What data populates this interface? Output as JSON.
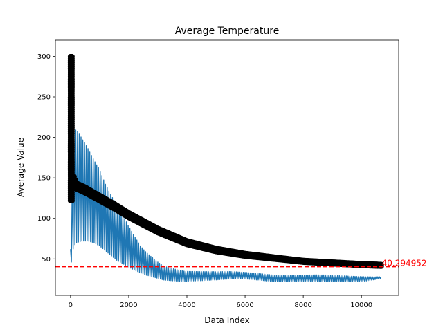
{
  "chart_data": {
    "type": "line",
    "title": "Average Temperature",
    "xlabel": "Data Index",
    "ylabel": "Average Value",
    "xlim": [
      -520,
      11280
    ],
    "ylim": [
      5,
      320
    ],
    "xticks": [
      0,
      2000,
      4000,
      6000,
      8000,
      10000
    ],
    "yticks": [
      50,
      100,
      150,
      200,
      250,
      300
    ],
    "grid": false,
    "series": [
      {
        "style": "line",
        "color": "#1f77b4",
        "upper": [
          [
            0,
            62
          ],
          [
            100,
            205
          ],
          [
            200,
            210
          ],
          [
            400,
            198
          ],
          [
            600,
            186
          ],
          [
            800,
            172
          ],
          [
            1000,
            160
          ],
          [
            1200,
            142
          ],
          [
            1400,
            128
          ],
          [
            1600,
            116
          ],
          [
            1800,
            104
          ],
          [
            2000,
            90
          ],
          [
            2200,
            78
          ],
          [
            2400,
            66
          ],
          [
            2600,
            58
          ],
          [
            2800,
            52
          ],
          [
            3000,
            46
          ],
          [
            3200,
            41
          ],
          [
            3500,
            38
          ],
          [
            4000,
            34
          ],
          [
            4500,
            33
          ],
          [
            5000,
            33
          ],
          [
            5500,
            34
          ],
          [
            6000,
            34
          ],
          [
            6500,
            33
          ],
          [
            7000,
            31
          ],
          [
            8000,
            29
          ],
          [
            9000,
            29
          ],
          [
            10000,
            29
          ],
          [
            10700,
            29
          ]
        ],
        "lower": [
          [
            0,
            38
          ],
          [
            100,
            65
          ],
          [
            200,
            70
          ],
          [
            400,
            72
          ],
          [
            600,
            72
          ],
          [
            800,
            70
          ],
          [
            1000,
            66
          ],
          [
            1200,
            60
          ],
          [
            1400,
            54
          ],
          [
            1600,
            48
          ],
          [
            1800,
            44
          ],
          [
            2000,
            40
          ],
          [
            2200,
            36
          ],
          [
            2400,
            33
          ],
          [
            2600,
            30
          ],
          [
            2800,
            28
          ],
          [
            3000,
            26
          ],
          [
            3200,
            24
          ],
          [
            3500,
            23
          ],
          [
            4000,
            22
          ],
          [
            4500,
            22
          ],
          [
            5000,
            23
          ],
          [
            5500,
            25
          ],
          [
            6000,
            26
          ],
          [
            6500,
            25
          ],
          [
            7000,
            23
          ],
          [
            8000,
            21
          ],
          [
            9000,
            21
          ],
          [
            10000,
            23
          ],
          [
            10700,
            27
          ]
        ]
      },
      {
        "style": "markers",
        "color": "#000000",
        "spike_x": [
          0,
          8,
          16,
          24,
          32,
          40,
          48
        ],
        "spike_lo": [
          122,
          300
        ],
        "curve": [
          [
            0,
            145
          ],
          [
            100,
            150
          ],
          [
            200,
            140
          ],
          [
            500,
            135
          ],
          [
            1000,
            125
          ],
          [
            1500,
            115
          ],
          [
            2000,
            104
          ],
          [
            3000,
            85
          ],
          [
            4000,
            70
          ],
          [
            5000,
            61
          ],
          [
            6000,
            55
          ],
          [
            7000,
            51
          ],
          [
            8000,
            47
          ],
          [
            9000,
            45
          ],
          [
            10000,
            43
          ],
          [
            10700,
            42
          ]
        ],
        "band": 7
      }
    ],
    "reference_line": {
      "y": 40.294952,
      "label": "40.294952",
      "color": "#ff0000",
      "style": "dashed"
    }
  }
}
